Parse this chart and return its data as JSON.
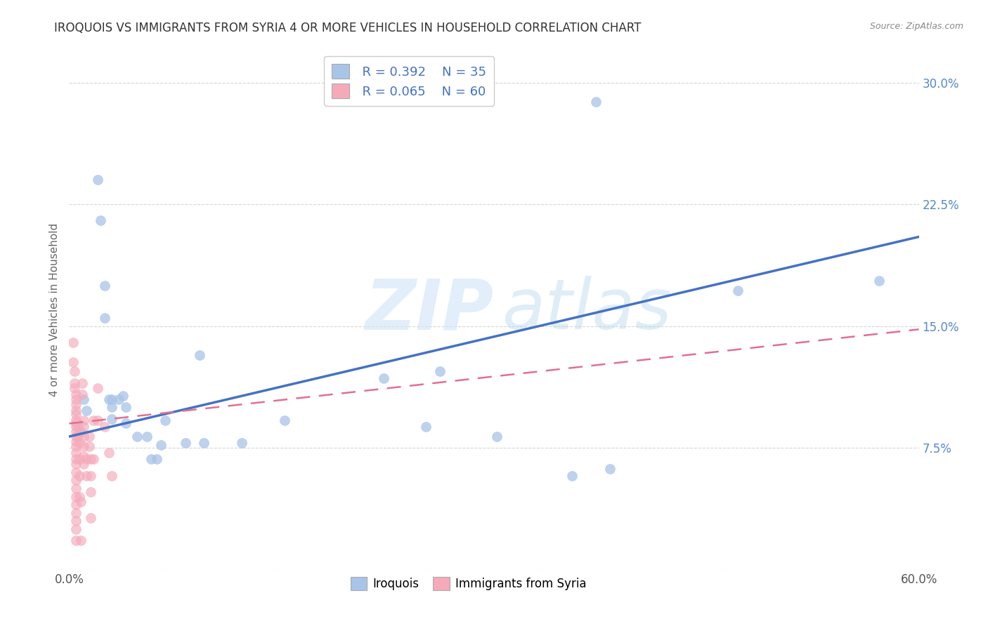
{
  "title": "IROQUOIS VS IMMIGRANTS FROM SYRIA 4 OR MORE VEHICLES IN HOUSEHOLD CORRELATION CHART",
  "source": "Source: ZipAtlas.com",
  "ylabel": "4 or more Vehicles in Household",
  "xlim": [
    0.0,
    0.6
  ],
  "ylim": [
    0.0,
    0.32
  ],
  "xticks": [
    0.0,
    0.1,
    0.2,
    0.3,
    0.4,
    0.5,
    0.6
  ],
  "xticklabels": [
    "0.0%",
    "",
    "",
    "",
    "",
    "",
    "60.0%"
  ],
  "yticks_right": [
    0.0,
    0.075,
    0.15,
    0.225,
    0.3
  ],
  "yticklabels_right": [
    "",
    "7.5%",
    "15.0%",
    "22.5%",
    "30.0%"
  ],
  "legend_blue_r": "R = 0.392",
  "legend_blue_n": "N = 35",
  "legend_pink_r": "R = 0.065",
  "legend_pink_n": "N = 60",
  "blue_color": "#a8c4e8",
  "pink_color": "#f5aaba",
  "blue_line_color": "#4472c4",
  "pink_line_color": "#e07090",
  "background_color": "#ffffff",
  "grid_color": "#cccccc",
  "blue_scatter": [
    [
      0.008,
      0.085
    ],
    [
      0.01,
      0.105
    ],
    [
      0.012,
      0.098
    ],
    [
      0.02,
      0.24
    ],
    [
      0.022,
      0.215
    ],
    [
      0.025,
      0.175
    ],
    [
      0.025,
      0.155
    ],
    [
      0.028,
      0.105
    ],
    [
      0.03,
      0.1
    ],
    [
      0.03,
      0.093
    ],
    [
      0.03,
      0.105
    ],
    [
      0.035,
      0.105
    ],
    [
      0.038,
      0.107
    ],
    [
      0.04,
      0.1
    ],
    [
      0.04,
      0.09
    ],
    [
      0.048,
      0.082
    ],
    [
      0.055,
      0.082
    ],
    [
      0.058,
      0.068
    ],
    [
      0.062,
      0.068
    ],
    [
      0.065,
      0.077
    ],
    [
      0.068,
      0.092
    ],
    [
      0.082,
      0.078
    ],
    [
      0.092,
      0.132
    ],
    [
      0.095,
      0.078
    ],
    [
      0.122,
      0.078
    ],
    [
      0.152,
      0.092
    ],
    [
      0.222,
      0.118
    ],
    [
      0.252,
      0.088
    ],
    [
      0.262,
      0.122
    ],
    [
      0.302,
      0.082
    ],
    [
      0.355,
      0.058
    ],
    [
      0.372,
      0.288
    ],
    [
      0.382,
      0.062
    ],
    [
      0.472,
      0.172
    ],
    [
      0.572,
      0.178
    ]
  ],
  "pink_scatter": [
    [
      0.003,
      0.14
    ],
    [
      0.003,
      0.128
    ],
    [
      0.004,
      0.122
    ],
    [
      0.004,
      0.115
    ],
    [
      0.004,
      0.112
    ],
    [
      0.005,
      0.108
    ],
    [
      0.005,
      0.105
    ],
    [
      0.005,
      0.102
    ],
    [
      0.005,
      0.098
    ],
    [
      0.005,
      0.096
    ],
    [
      0.005,
      0.092
    ],
    [
      0.005,
      0.09
    ],
    [
      0.005,
      0.088
    ],
    [
      0.005,
      0.085
    ],
    [
      0.005,
      0.082
    ],
    [
      0.005,
      0.079
    ],
    [
      0.005,
      0.076
    ],
    [
      0.005,
      0.072
    ],
    [
      0.005,
      0.068
    ],
    [
      0.005,
      0.065
    ],
    [
      0.005,
      0.06
    ],
    [
      0.005,
      0.055
    ],
    [
      0.005,
      0.05
    ],
    [
      0.005,
      0.045
    ],
    [
      0.005,
      0.04
    ],
    [
      0.005,
      0.035
    ],
    [
      0.005,
      0.03
    ],
    [
      0.005,
      0.025
    ],
    [
      0.005,
      0.018
    ],
    [
      0.006,
      0.088
    ],
    [
      0.006,
      0.082
    ],
    [
      0.007,
      0.078
    ],
    [
      0.007,
      0.068
    ],
    [
      0.007,
      0.058
    ],
    [
      0.007,
      0.045
    ],
    [
      0.008,
      0.042
    ],
    [
      0.009,
      0.115
    ],
    [
      0.009,
      0.108
    ],
    [
      0.01,
      0.092
    ],
    [
      0.01,
      0.088
    ],
    [
      0.01,
      0.082
    ],
    [
      0.01,
      0.076
    ],
    [
      0.01,
      0.07
    ],
    [
      0.01,
      0.065
    ],
    [
      0.012,
      0.068
    ],
    [
      0.012,
      0.058
    ],
    [
      0.014,
      0.082
    ],
    [
      0.014,
      0.076
    ],
    [
      0.015,
      0.068
    ],
    [
      0.015,
      0.058
    ],
    [
      0.015,
      0.048
    ],
    [
      0.015,
      0.032
    ],
    [
      0.017,
      0.092
    ],
    [
      0.017,
      0.068
    ],
    [
      0.02,
      0.112
    ],
    [
      0.02,
      0.092
    ],
    [
      0.025,
      0.088
    ],
    [
      0.028,
      0.072
    ],
    [
      0.03,
      0.058
    ],
    [
      0.008,
      0.018
    ]
  ],
  "blue_trendline": [
    [
      0.0,
      0.082
    ],
    [
      0.6,
      0.205
    ]
  ],
  "pink_trendline": [
    [
      0.0,
      0.09
    ],
    [
      0.6,
      0.148
    ]
  ]
}
